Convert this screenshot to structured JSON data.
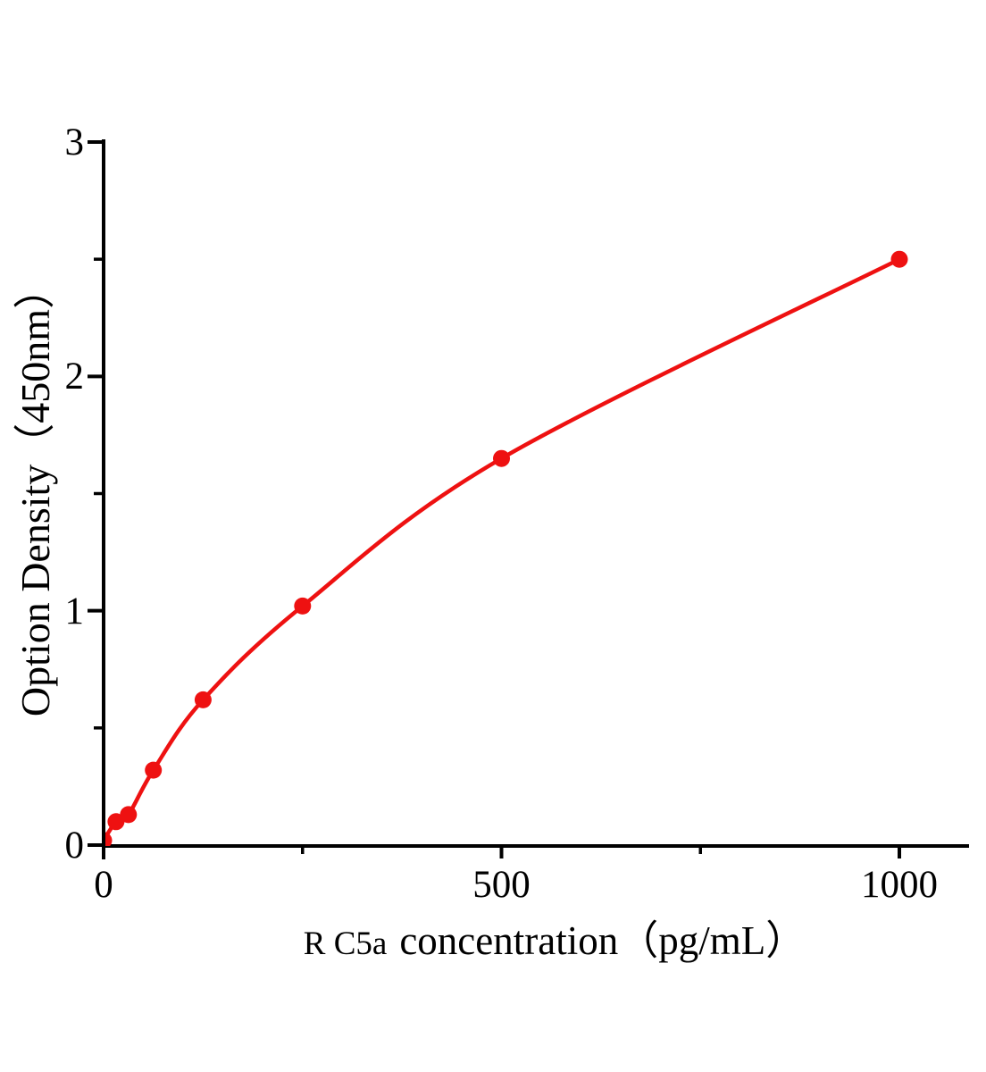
{
  "chart_data": {
    "type": "line",
    "title": "",
    "xlabel_prefix": "R C5a",
    "xlabel_main": "concentration（pg/mL）",
    "ylabel": "Option Density（450nm）",
    "x_values": [
      0,
      15.6,
      31.2,
      62.5,
      125,
      250,
      500,
      1000
    ],
    "y_values": [
      0.02,
      0.1,
      0.13,
      0.32,
      0.62,
      1.02,
      1.65,
      2.5
    ],
    "x_ticks": [
      0,
      500,
      1000
    ],
    "x_minor_ticks": [
      250,
      750
    ],
    "y_ticks": [
      0,
      1,
      2,
      3
    ],
    "y_minor_ticks": [
      0.5,
      1.5,
      2.5
    ],
    "xlim": [
      0,
      1090
    ],
    "ylim": [
      0,
      3
    ],
    "grid": false,
    "legend": "none",
    "marker": "circle",
    "line_color": "#ee1111",
    "axis_color": "#000000",
    "background_color": "#ffffff"
  }
}
